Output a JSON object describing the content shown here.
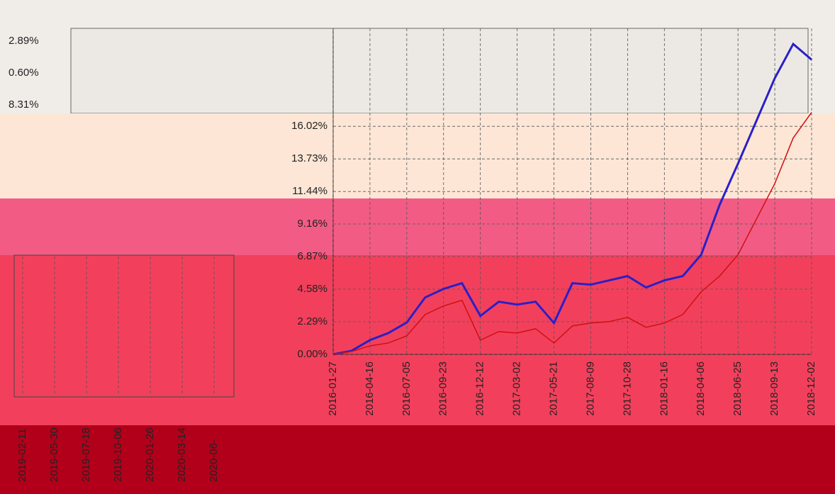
{
  "chart_data": {
    "type": "line",
    "categories": [
      "2016-01-27",
      null,
      "2016-04-16",
      null,
      "2016-07-05",
      null,
      "2016-09-23",
      null,
      "2016-12-12",
      null,
      "2017-03-02",
      null,
      "2017-05-21",
      null,
      "2017-08-09",
      null,
      "2017-10-28",
      null,
      "2018-01-16",
      null,
      "2018-04-06",
      null,
      "2018-06-25",
      null,
      "2018-09-13",
      null,
      "2018-12-02"
    ],
    "series": [
      {
        "color": "#2a1fc8",
        "values": [
          0.0,
          0.25,
          1.0,
          1.5,
          2.24,
          4.0,
          4.6,
          5.0,
          2.7,
          3.7,
          3.5,
          3.7,
          2.2,
          5.0,
          4.9,
          5.2,
          5.5,
          4.7,
          5.2,
          5.5,
          7.0,
          10.5,
          13.4,
          16.4,
          19.4,
          21.8,
          20.7
        ]
      },
      {
        "color": "#d01010",
        "values": [
          0.0,
          0.2,
          0.6,
          0.8,
          1.3,
          2.8,
          3.4,
          3.8,
          1.0,
          1.6,
          1.5,
          1.8,
          0.8,
          2.0,
          2.2,
          2.3,
          2.6,
          1.9,
          2.2,
          2.8,
          4.4,
          5.5,
          7.0,
          9.5,
          12.0,
          15.2,
          17.0
        ]
      }
    ],
    "ylim": [
      0,
      22.9
    ],
    "yticks": [
      {
        "value": 0,
        "label": "0.00%"
      },
      {
        "value": 2.29,
        "label": "2.29%"
      },
      {
        "value": 4.58,
        "label": "4.58%"
      },
      {
        "value": 6.87,
        "label": "6.87%"
      },
      {
        "value": 9.16,
        "label": "9.16%"
      },
      {
        "value": 11.44,
        "label": "11.44%"
      },
      {
        "value": 13.73,
        "label": "13.73%"
      },
      {
        "value": 16.02,
        "label": "16.02%"
      }
    ],
    "grid": true
  },
  "top_panel": {
    "labels": [
      "2.89%",
      "0.60%",
      "8.31%"
    ]
  },
  "left_panel": {
    "x_labels": [
      "2019-02-11",
      "2019-05-30",
      "2019-07-18",
      "2019-10-06",
      "2020-01-26",
      "2020-03-14",
      "2020-06-"
    ]
  }
}
